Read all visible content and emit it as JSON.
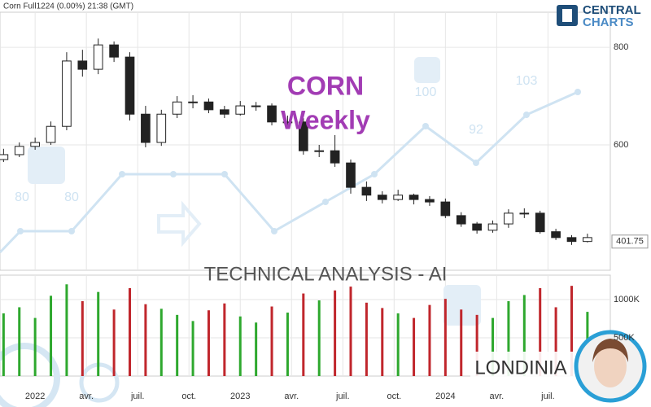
{
  "header": {
    "text": "Corn Full1224  (0.00%)  21:38 (GMT)"
  },
  "logo": {
    "line1": "CENTRAL",
    "line2": "CHARTS"
  },
  "watermark": {
    "title": "CORN",
    "subtitle": "Weekly",
    "banner": "TECHNICAL  ANALYSIS - AI",
    "brand": "LONDINIA",
    "forecast_labels": [
      80,
      80,
      100,
      92,
      103
    ]
  },
  "chart_data": {
    "type": "candlestick",
    "x": [
      -8,
      -4,
      0,
      4,
      8,
      12,
      16,
      20,
      24,
      28,
      32,
      36,
      40,
      44,
      48,
      52,
      56,
      60,
      64,
      68,
      72,
      76,
      80,
      84,
      88,
      92,
      96,
      100,
      104,
      108,
      112,
      116,
      120,
      124,
      128,
      132,
      136,
      140
    ],
    "open": [
      570,
      580,
      597,
      605,
      638,
      772,
      755,
      805,
      780,
      663,
      605,
      663,
      688,
      688,
      672,
      663,
      680,
      680,
      647,
      647,
      588,
      588,
      563,
      513,
      497,
      488,
      497,
      488,
      483,
      455,
      438,
      425,
      438,
      460,
      460,
      422,
      410,
      402
    ],
    "high": [
      592,
      605,
      615,
      648,
      790,
      795,
      818,
      812,
      790,
      680,
      672,
      700,
      702,
      695,
      680,
      690,
      688,
      685,
      660,
      655,
      600,
      620,
      570,
      525,
      505,
      508,
      500,
      495,
      490,
      462,
      442,
      445,
      468,
      470,
      465,
      428,
      415,
      418
    ],
    "low": [
      565,
      575,
      590,
      600,
      630,
      740,
      745,
      770,
      650,
      595,
      598,
      655,
      675,
      665,
      655,
      660,
      670,
      640,
      635,
      580,
      575,
      555,
      500,
      485,
      480,
      485,
      478,
      475,
      450,
      432,
      418,
      420,
      430,
      450,
      418,
      405,
      395,
      400
    ],
    "close": [
      580,
      597,
      605,
      638,
      772,
      755,
      805,
      780,
      663,
      605,
      663,
      688,
      688,
      672,
      663,
      680,
      680,
      647,
      647,
      588,
      588,
      563,
      513,
      497,
      488,
      497,
      488,
      483,
      455,
      438,
      425,
      438,
      460,
      460,
      422,
      410,
      402,
      410
    ],
    "up_color": "#ffffff",
    "down_color": "#222222",
    "edge_color": "#222222",
    "xlim": [
      -8.9,
      145.8
    ],
    "ylim": [
      343,
      872
    ],
    "yticks": [
      600,
      800
    ],
    "grid": true,
    "xticks": [
      {
        "value": 0,
        "label": "2022"
      },
      {
        "value": 13,
        "label": "avr."
      },
      {
        "value": 26,
        "label": "juil."
      },
      {
        "value": 39,
        "label": "oct."
      },
      {
        "value": 52,
        "label": "2023"
      },
      {
        "value": 65,
        "label": "avr."
      },
      {
        "value": 78,
        "label": "juil."
      },
      {
        "value": 91,
        "label": "oct."
      },
      {
        "value": 104,
        "label": "2024"
      },
      {
        "value": 117,
        "label": "avr."
      },
      {
        "value": 130,
        "label": "juil."
      }
    ],
    "last_price": 401.75,
    "volume": {
      "values": [
        820000,
        900000,
        760000,
        1050000,
        1200000,
        980000,
        1100000,
        870000,
        1150000,
        940000,
        880000,
        800000,
        720000,
        860000,
        950000,
        780000,
        700000,
        910000,
        830000,
        1080000,
        990000,
        1120000,
        1170000,
        960000,
        890000,
        820000,
        760000,
        930000,
        1010000,
        870000,
        800000,
        760000,
        980000,
        1060000,
        1150000,
        900000,
        1180000,
        840000
      ],
      "up_color": "#2ea82e",
      "down_color": "#c0262c",
      "ylim": [
        0,
        1320000
      ],
      "yticks": [
        {
          "value": 1000000,
          "label": "1000K"
        },
        {
          "value": 500000,
          "label": "500K"
        }
      ]
    }
  }
}
